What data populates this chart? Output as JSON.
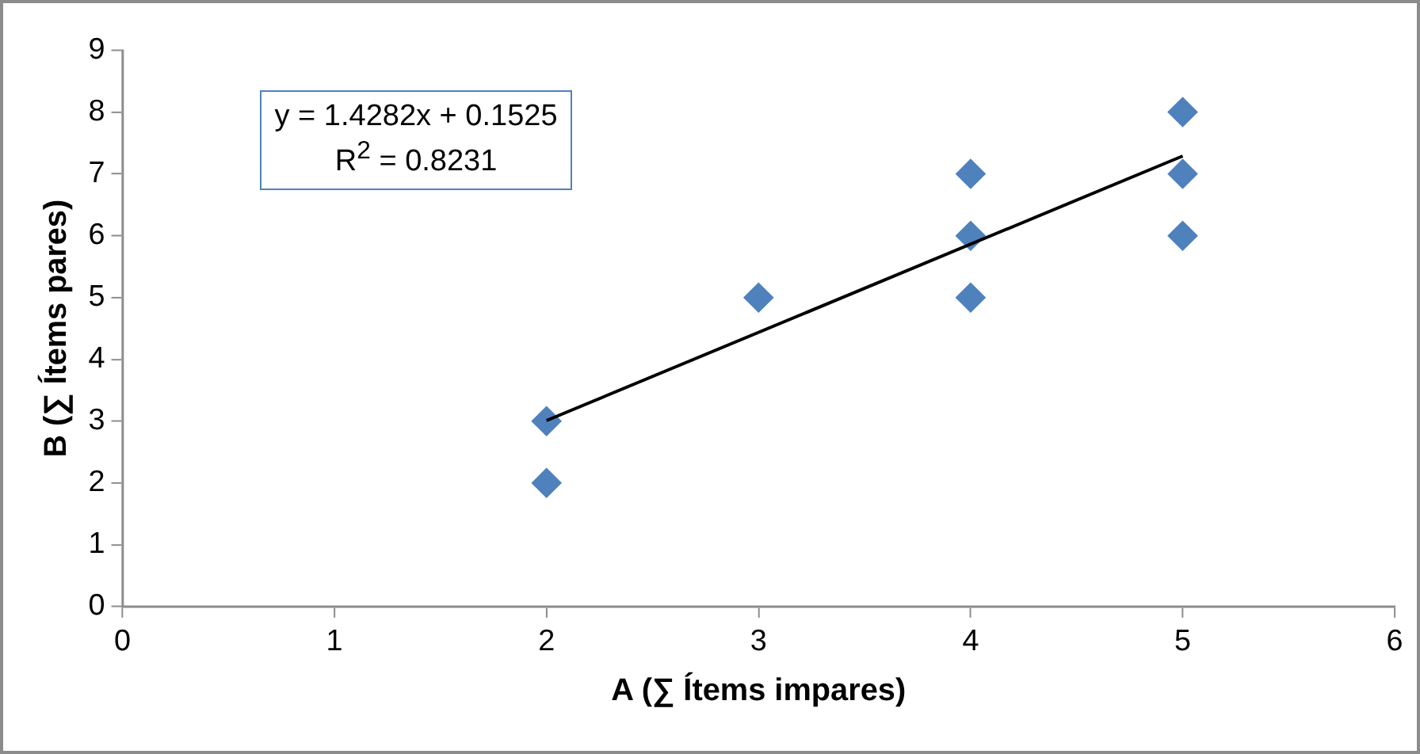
{
  "chart_data": {
    "type": "scatter",
    "xlabel": "A (∑ Ítems impares)",
    "ylabel": "B (∑ Ítems pares)",
    "annotations": [
      "y = 1.4282x + 0.1525",
      "R$^{2}$ = 0.8231"
    ],
    "x": [
      2,
      2,
      3,
      4,
      4,
      4,
      5,
      5,
      5
    ],
    "series": [
      {
        "color": "#4f81bd",
        "values": [
          3,
          2,
          5,
          7,
          6,
          5,
          8,
          7,
          6
        ]
      },
      {
        "type": "line",
        "color": "#000000",
        "marker": "none",
        "x": [
          2,
          5
        ],
        "values": [
          3.01,
          7.29
        ]
      }
    ],
    "xlim": [
      0,
      6
    ],
    "xticks": [
      0,
      1,
      2,
      3,
      4,
      5,
      6
    ],
    "ylim": [
      0,
      9
    ],
    "yticks": [
      0,
      1,
      2,
      3,
      4,
      5,
      6,
      7,
      8,
      9
    ],
    "grid": false,
    "legend": false,
    "marker": "diamond"
  }
}
